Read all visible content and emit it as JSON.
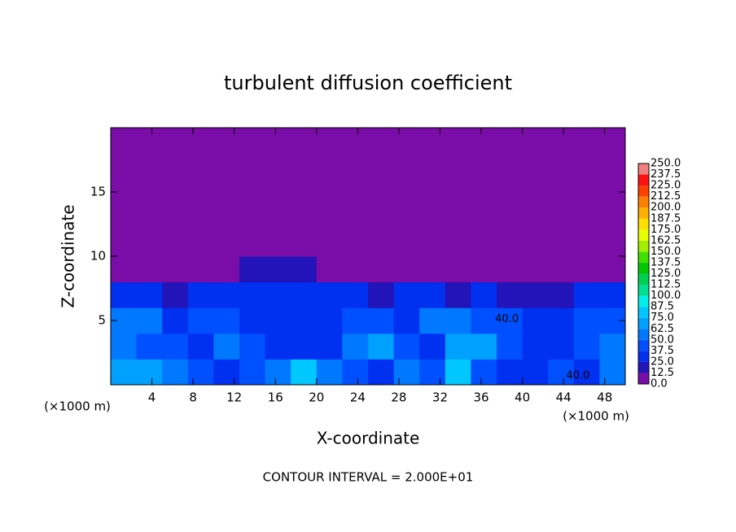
{
  "chart_data": {
    "type": "heatmap",
    "title": "turbulent diffusion coefficient",
    "xlabel": "X-coordinate",
    "ylabel": "Z-coordinate",
    "x_unit": "(×1000 m)",
    "annotation": "CONTOUR INTERVAL = 2.000E+01",
    "xlim": [
      0,
      50
    ],
    "ylim": [
      0,
      20
    ],
    "xticks": [
      4,
      8,
      12,
      16,
      20,
      24,
      28,
      32,
      36,
      40,
      44,
      48
    ],
    "yticks": [
      5,
      10,
      15
    ],
    "x": [
      1.25,
      3.75,
      6.25,
      8.75,
      11.25,
      13.75,
      16.25,
      18.75,
      21.25,
      23.75,
      26.25,
      28.75,
      31.25,
      33.75,
      36.25,
      38.75,
      41.25,
      43.75,
      46.25,
      48.75
    ],
    "y": [
      1,
      3,
      5,
      7,
      9,
      11,
      13,
      15,
      17,
      19
    ],
    "z": [
      [
        70,
        65,
        55,
        40,
        30,
        45,
        60,
        75,
        50,
        40,
        35,
        60,
        45,
        80,
        40,
        35,
        30,
        45,
        35,
        55
      ],
      [
        55,
        45,
        40,
        30,
        60,
        45,
        30,
        35,
        30,
        50,
        65,
        40,
        30,
        70,
        65,
        40,
        35,
        30,
        40,
        50
      ],
      [
        60,
        50,
        35,
        45,
        40,
        30,
        25,
        35,
        35,
        40,
        45,
        35,
        55,
        60,
        45,
        40,
        30,
        35,
        45,
        40
      ],
      [
        30,
        25,
        20,
        30,
        25,
        30,
        30,
        25,
        30,
        28,
        20,
        30,
        25,
        20,
        25,
        22,
        15,
        20,
        25,
        30
      ],
      [
        5,
        5,
        5,
        5,
        5,
        15,
        20,
        20,
        5,
        5,
        5,
        5,
        5,
        5,
        5,
        5,
        5,
        5,
        5,
        5
      ],
      [
        5,
        5,
        5,
        5,
        5,
        5,
        5,
        5,
        5,
        5,
        5,
        5,
        5,
        5,
        5,
        5,
        5,
        5,
        5,
        5
      ],
      [
        5,
        5,
        5,
        5,
        5,
        5,
        5,
        5,
        5,
        5,
        5,
        5,
        5,
        5,
        5,
        5,
        5,
        5,
        5,
        5
      ],
      [
        5,
        5,
        5,
        5,
        5,
        5,
        5,
        5,
        5,
        5,
        5,
        5,
        5,
        5,
        5,
        5,
        5,
        5,
        5,
        5
      ],
      [
        5,
        5,
        5,
        5,
        5,
        5,
        5,
        5,
        5,
        5,
        5,
        5,
        5,
        5,
        5,
        5,
        5,
        5,
        5,
        5
      ],
      [
        5,
        5,
        5,
        5,
        5,
        5,
        5,
        5,
        5,
        5,
        5,
        5,
        5,
        5,
        5,
        5,
        5,
        5,
        5,
        5
      ]
    ],
    "levels": [
      {
        "value": 0,
        "label": "0.0"
      },
      12.5,
      {
        "value": 25,
        "label": "25.0"
      },
      37.5,
      {
        "value": 50,
        "label": "50.0"
      },
      62.5,
      {
        "value": 75,
        "label": "75.0"
      },
      87.5,
      {
        "value": 100,
        "label": "100.0"
      },
      112.5,
      {
        "value": 125,
        "label": "125.0"
      },
      137.5,
      {
        "value": 150,
        "label": "150.0"
      },
      162.5,
      {
        "value": 175,
        "label": "175.0"
      },
      187.5,
      {
        "value": 200,
        "label": "200.0"
      },
      212.5,
      {
        "value": 225,
        "label": "225.0"
      },
      237.5,
      {
        "value": 250,
        "label": "250.0"
      }
    ],
    "colors": [
      "#7a0ca8",
      "#2214b8",
      "#0030f0",
      "#0050ff",
      "#0078ff",
      "#00a0ff",
      "#00c8ff",
      "#00f0e8",
      "#00e090",
      "#00d050",
      "#00c800",
      "#40e000",
      "#a0f000",
      "#e8ff00",
      "#ffe000",
      "#ffb000",
      "#ff8000",
      "#ff4000",
      "#ff1010",
      "#f08080"
    ],
    "contour_labels": [
      {
        "text": "40.0",
        "x": 38.5,
        "y": 5.1
      },
      {
        "text": "40.0",
        "x": 45.4,
        "y": 0.7
      }
    ]
  }
}
